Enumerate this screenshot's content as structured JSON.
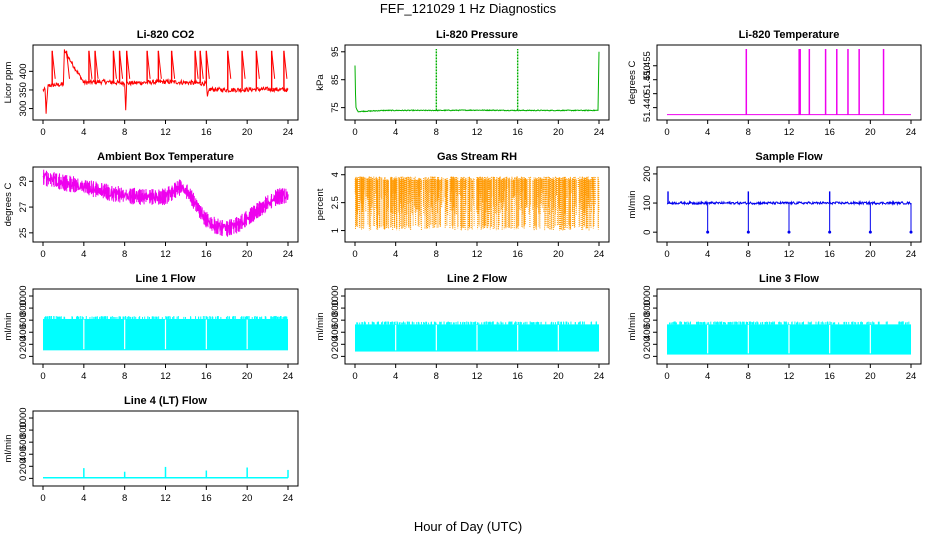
{
  "title": "FEF_121029  1 Hz Diagnostics",
  "xlabel": "Hour of Day (UTC)",
  "chart_data": [
    {
      "id": "co2",
      "type": "line",
      "title": "Li-820 CO2",
      "xlabel": "",
      "ylabel": "Licor ppm",
      "xlim": [
        0,
        24
      ],
      "ylim": [
        280,
        460
      ],
      "xticks": [
        0,
        4,
        8,
        12,
        16,
        20,
        24
      ],
      "yticks": [
        300,
        350,
        400
      ],
      "color": "#ff0000",
      "series": [
        {
          "x": [
            0,
            0.2,
            0.3,
            0.5,
            2,
            2.1,
            4,
            6,
            8,
            8.1,
            8.2,
            10,
            12,
            14,
            16,
            16.1,
            16.3,
            18,
            20,
            22,
            24
          ],
          "values": [
            350,
            350,
            290,
            362,
            365,
            455,
            370,
            372,
            368,
            300,
            368,
            370,
            372,
            370,
            367,
            330,
            352,
            350,
            351,
            352,
            350
          ]
        }
      ],
      "spikes": [
        0.9,
        2.3,
        4.5,
        5.1,
        6.9,
        7.5,
        8.2,
        10.2,
        11.3,
        12.6,
        14.9,
        15.4,
        16.0,
        18.1,
        19.5,
        20.9,
        22.4,
        23.6
      ]
    },
    {
      "id": "pressure",
      "type": "line",
      "title": "Li-820 Pressure",
      "xlabel": "",
      "ylabel": "kPa",
      "xlim": [
        0,
        24
      ],
      "ylim": [
        72,
        96
      ],
      "xticks": [
        0,
        4,
        8,
        12,
        16,
        20,
        24
      ],
      "yticks": [
        75,
        85,
        95
      ],
      "color": "#00b000",
      "series": [
        {
          "x": [
            0,
            0.05,
            0.1,
            0.3,
            3,
            8,
            12,
            16,
            20,
            23.9,
            24
          ],
          "values": [
            90,
            80,
            75,
            73.6,
            74,
            74,
            74.1,
            74,
            74,
            74,
            95
          ]
        }
      ],
      "spikes": [
        8,
        16
      ]
    },
    {
      "id": "temperature",
      "type": "line",
      "title": "Li-820 Temperature",
      "xlabel": "",
      "ylabel": "degrees C",
      "xlim": [
        0,
        24
      ],
      "ylim": [
        51.437,
        51.461
      ],
      "xticks": [
        0,
        4,
        8,
        12,
        16,
        20,
        24
      ],
      "yticks": [
        51.44,
        51.445,
        51.45,
        51.455
      ],
      "ytick_labels": [
        "51.440",
        "",
        "51.450",
        "51.455"
      ],
      "color": "#ee00ee",
      "series": [
        {
          "x": [
            0,
            24
          ],
          "values": [
            51.4375,
            51.4375
          ]
        }
      ],
      "spikes": [
        7.8,
        13.0,
        13.1,
        14.0,
        15.6,
        16.7,
        17.8,
        18.9,
        21.3
      ]
    },
    {
      "id": "ambient",
      "type": "line",
      "title": "Ambient Box Temperature",
      "xlabel": "",
      "ylabel": "degrees C",
      "xlim": [
        0,
        24
      ],
      "ylim": [
        24.6,
        29.8
      ],
      "xticks": [
        0,
        4,
        8,
        12,
        16,
        20,
        24
      ],
      "yticks": [
        25,
        27,
        29
      ],
      "color": "#ee00ee",
      "series": [
        {
          "x": [
            0,
            2,
            4,
            6,
            8,
            10,
            12,
            13,
            13.5,
            14,
            15,
            16,
            17,
            18,
            19,
            20,
            21,
            22,
            23,
            24
          ],
          "values": [
            29.3,
            28.9,
            28.6,
            28.2,
            27.9,
            27.8,
            27.8,
            28.3,
            28.6,
            28.3,
            27.2,
            26.0,
            25.5,
            25.3,
            25.6,
            26.1,
            26.7,
            27.3,
            27.8,
            27.9
          ]
        }
      ]
    },
    {
      "id": "rh",
      "type": "line",
      "title": "Gas Stream RH",
      "xlabel": "",
      "ylabel": "percent",
      "xlim": [
        0,
        24
      ],
      "ylim": [
        0.6,
        4.2
      ],
      "xticks": [
        0,
        4,
        8,
        12,
        16,
        20,
        24
      ],
      "yticks": [
        1.0,
        2.5,
        4.0
      ],
      "color": "#ff9900",
      "series": [
        {
          "name": "",
          "x": [
            0,
            24
          ],
          "values": [
            1.0,
            3.9
          ]
        }
      ]
    },
    {
      "id": "sampleflow",
      "type": "line",
      "title": "Sample Flow",
      "xlabel": "",
      "ylabel": "ml/min",
      "xlim": [
        0,
        24
      ],
      "ylim": [
        -20,
        210
      ],
      "xticks": [
        0,
        4,
        8,
        12,
        16,
        20,
        24
      ],
      "yticks": [
        0,
        100,
        200
      ],
      "color": "#0000ee",
      "series": [
        {
          "x": [
            0,
            24
          ],
          "values": [
            100,
            100
          ]
        }
      ],
      "dips": [
        4,
        8,
        12,
        16,
        20,
        24
      ],
      "spikes": [
        0.1,
        8,
        16
      ]
    },
    {
      "id": "line1",
      "type": "line",
      "title": "Line 1 Flow",
      "xlabel": "",
      "ylabel": "ml/min",
      "xlim": [
        0,
        24
      ],
      "ylim": [
        -60,
        1050
      ],
      "xticks": [
        0,
        4,
        8,
        12,
        16,
        20,
        24
      ],
      "yticks": [
        0,
        200,
        400,
        600,
        800,
        1000
      ],
      "color": "#00ffff",
      "series": [
        {
          "x": [
            0,
            24
          ],
          "values": [
            100,
            650
          ]
        }
      ]
    },
    {
      "id": "line2",
      "type": "line",
      "title": "Line 2 Flow",
      "xlabel": "",
      "ylabel": "ml/min",
      "xlim": [
        0,
        24
      ],
      "ylim": [
        -60,
        1050
      ],
      "xticks": [
        0,
        4,
        8,
        12,
        16,
        20,
        24
      ],
      "yticks": [
        0,
        200,
        400,
        600,
        800,
        1000
      ],
      "color": "#00ffff",
      "series": [
        {
          "x": [
            0,
            24
          ],
          "values": [
            80,
            560
          ]
        }
      ]
    },
    {
      "id": "line3",
      "type": "line",
      "title": "Line 3 Flow",
      "xlabel": "",
      "ylabel": "ml/min",
      "xlim": [
        0,
        24
      ],
      "ylim": [
        -60,
        1050
      ],
      "xticks": [
        0,
        4,
        8,
        12,
        16,
        20,
        24
      ],
      "yticks": [
        0,
        200,
        400,
        600,
        800,
        1000
      ],
      "color": "#00ffff",
      "series": [
        {
          "x": [
            0,
            24
          ],
          "values": [
            30,
            560
          ]
        }
      ]
    },
    {
      "id": "line4",
      "type": "line",
      "title": "Line 4 (LT) Flow",
      "xlabel": "",
      "ylabel": "ml/min",
      "xlim": [
        0,
        24
      ],
      "ylim": [
        -60,
        1050
      ],
      "xticks": [
        0,
        4,
        8,
        12,
        16,
        20,
        24
      ],
      "yticks": [
        0,
        200,
        400,
        600,
        800,
        1000
      ],
      "color": "#00ffff",
      "series": [
        {
          "x": [
            0,
            24
          ],
          "values": [
            10,
            10
          ]
        }
      ],
      "spikes": [
        4,
        8,
        12,
        16,
        20,
        24
      ],
      "spike_values": [
        170,
        110,
        190,
        130,
        180,
        140
      ]
    }
  ]
}
